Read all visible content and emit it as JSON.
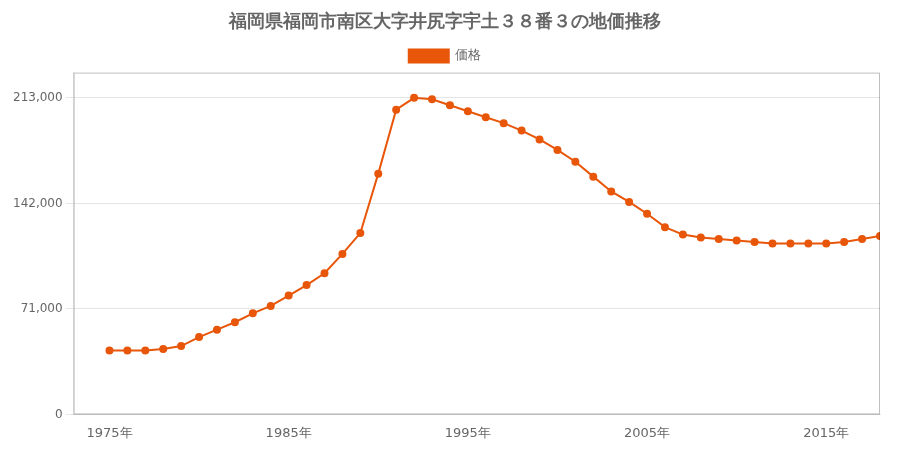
{
  "chart_data": {
    "type": "line",
    "title": "福岡県福岡市南区大字井尻字宇土３８番３の地価推移",
    "x": [
      1975,
      1976,
      1977,
      1978,
      1979,
      1980,
      1981,
      1982,
      1983,
      1984,
      1985,
      1986,
      1987,
      1988,
      1989,
      1990,
      1991,
      1992,
      1993,
      1994,
      1995,
      1996,
      1997,
      1998,
      1999,
      2000,
      2001,
      2002,
      2003,
      2004,
      2005,
      2006,
      2007,
      2008,
      2009,
      2010,
      2011,
      2012,
      2013,
      2014,
      2015,
      2016,
      2017,
      2018
    ],
    "series": [
      {
        "name": "価格",
        "color": "#E8560A",
        "marker": "circle",
        "line_style": "solid",
        "values": [
          43000,
          43000,
          43000,
          44000,
          46000,
          52000,
          57000,
          62000,
          68000,
          73000,
          80000,
          87000,
          95000,
          108000,
          122000,
          162000,
          205000,
          213000,
          212000,
          208000,
          204000,
          200000,
          196000,
          191000,
          185000,
          178000,
          170000,
          160000,
          150000,
          143000,
          135000,
          126000,
          121000,
          119000,
          118000,
          117000,
          116000,
          115000,
          115000,
          115000,
          115000,
          116000,
          118000,
          120000
        ]
      }
    ],
    "xlim": [
      1973,
      2018
    ],
    "xticks": [
      {
        "value": 1975,
        "label": "1975年"
      },
      {
        "value": 1985,
        "label": "1985年"
      },
      {
        "value": 1995,
        "label": "1995年"
      },
      {
        "value": 2005,
        "label": "2005年"
      },
      {
        "value": 2015,
        "label": "2015年"
      }
    ],
    "ylim": [
      0,
      230000
    ],
    "yticks": [
      0,
      {
        "value": 71000,
        "label": "71,000"
      },
      {
        "value": 142000,
        "label": "142,000"
      },
      {
        "value": 213000,
        "label": "213,000"
      }
    ],
    "grid": "y",
    "legend": "top"
  }
}
